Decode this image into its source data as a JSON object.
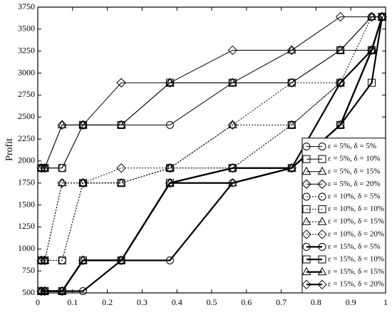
{
  "chart_data": {
    "type": "line",
    "y_label": "Profit",
    "x": [
      0.01,
      0.02,
      0.07,
      0.13,
      0.24,
      0.38,
      0.56,
      0.73,
      0.87,
      0.96,
      0.99
    ],
    "xlim": [
      0,
      1
    ],
    "xticks": [
      0,
      0.1,
      0.2,
      0.3,
      0.4,
      0.5,
      0.6,
      0.7,
      0.8,
      0.9,
      1
    ],
    "ylim": [
      500,
      3750
    ],
    "yticks": [
      500,
      750,
      1000,
      1250,
      1500,
      1750,
      2000,
      2250,
      2500,
      2750,
      3000,
      3250,
      3500,
      3750
    ],
    "grid": false,
    "legend": "lower right",
    "series": [
      {
        "name": "ε = 5%, δ = 5%",
        "color": "#000000",
        "dash": "solid",
        "width": 1,
        "marker": "circle",
        "values": [
          1920,
          1920,
          1920,
          2410,
          2410,
          2410,
          2890,
          2890,
          3260,
          3640,
          3640
        ]
      },
      {
        "name": "ε = 5%, δ = 10%",
        "color": "#000000",
        "dash": "solid",
        "width": 1,
        "marker": "square",
        "values": [
          1920,
          1920,
          1920,
          2410,
          2410,
          2890,
          2890,
          2890,
          3260,
          3260,
          3640
        ]
      },
      {
        "name": "ε = 5%, δ = 15%",
        "color": "#000000",
        "dash": "solid",
        "width": 1,
        "marker": "triangle",
        "values": [
          1920,
          1920,
          2410,
          2410,
          2410,
          2890,
          2890,
          3260,
          3260,
          3640,
          3640
        ]
      },
      {
        "name": "ε = 5%, δ = 20%",
        "color": "#000000",
        "dash": "solid",
        "width": 1,
        "marker": "diamond",
        "values": [
          1920,
          1920,
          2410,
          2410,
          2890,
          2890,
          3260,
          3260,
          3640,
          3640,
          3640
        ]
      },
      {
        "name": "ε = 10%, δ = 5%",
        "color": "#000000",
        "dash": "dotted",
        "width": 1,
        "marker": "circle",
        "values": [
          870,
          870,
          870,
          1750,
          1750,
          1920,
          1920,
          2410,
          2890,
          3260,
          3640
        ]
      },
      {
        "name": "ε = 10%, δ = 10%",
        "color": "#000000",
        "dash": "dotted",
        "width": 1,
        "marker": "square",
        "values": [
          870,
          870,
          870,
          1750,
          1750,
          1920,
          1920,
          2410,
          2890,
          3260,
          3640
        ]
      },
      {
        "name": "ε = 10%, δ = 15%",
        "color": "#000000",
        "dash": "dotted",
        "width": 1,
        "marker": "triangle",
        "values": [
          870,
          870,
          1750,
          1750,
          1750,
          1920,
          2410,
          2410,
          2890,
          3260,
          3640
        ]
      },
      {
        "name": "ε = 10%, δ = 20%",
        "color": "#000000",
        "dash": "dotted",
        "width": 1,
        "marker": "diamond",
        "values": [
          870,
          870,
          1750,
          1750,
          1920,
          1920,
          2410,
          2890,
          2890,
          3640,
          3640
        ]
      },
      {
        "name": "ε = 15%, δ = 5%",
        "color": "#000000",
        "dash": "solid",
        "width": 2.2,
        "marker": "circle",
        "values": [
          520,
          520,
          520,
          520,
          870,
          870,
          1750,
          1920,
          2410,
          3260,
          3640
        ]
      },
      {
        "name": "ε = 15%, δ = 10%",
        "color": "#000000",
        "dash": "solid",
        "width": 2.2,
        "marker": "square",
        "values": [
          520,
          520,
          520,
          870,
          870,
          1750,
          1920,
          1920,
          2410,
          2890,
          3640
        ]
      },
      {
        "name": "ε = 15%, δ = 15%",
        "color": "#000000",
        "dash": "solid",
        "width": 2.2,
        "marker": "triangle",
        "values": [
          520,
          520,
          520,
          870,
          870,
          1750,
          1750,
          1920,
          2410,
          3260,
          3640
        ]
      },
      {
        "name": "ε = 15%, δ = 20%",
        "color": "#000000",
        "dash": "solid",
        "width": 2.2,
        "marker": "diamond",
        "values": [
          520,
          520,
          520,
          870,
          870,
          1750,
          1920,
          1920,
          2890,
          3260,
          3640
        ]
      }
    ]
  }
}
